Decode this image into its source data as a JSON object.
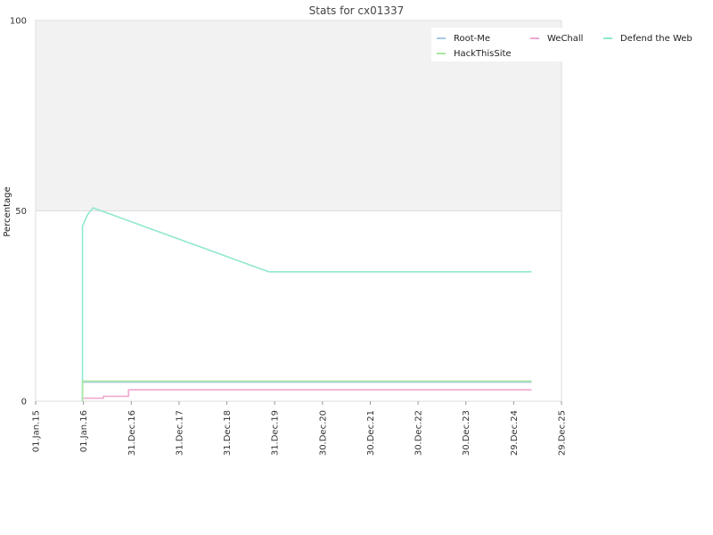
{
  "chart_data": {
    "type": "line",
    "title": "Stats for cx01337",
    "ylabel": "Percentage",
    "xlabel": "",
    "ylim": [
      0,
      100
    ],
    "yticks": [
      "0",
      "50",
      "100"
    ],
    "xlim": [
      "2015-01-01",
      "2025-12-29"
    ],
    "xticks": [
      {
        "date": "2015-01-01",
        "label": "01.Jan.15"
      },
      {
        "date": "2016-01-01",
        "label": "01.Jan.16"
      },
      {
        "date": "2016-12-31",
        "label": "31.Dec.16"
      },
      {
        "date": "2017-12-31",
        "label": "31.Dec.17"
      },
      {
        "date": "2018-12-31",
        "label": "31.Dec.18"
      },
      {
        "date": "2019-12-31",
        "label": "31.Dec.19"
      },
      {
        "date": "2020-12-30",
        "label": "30.Dec.20"
      },
      {
        "date": "2021-12-30",
        "label": "30.Dec.21"
      },
      {
        "date": "2022-12-30",
        "label": "30.Dec.22"
      },
      {
        "date": "2023-12-30",
        "label": "30.Dec.23"
      },
      {
        "date": "2024-12-29",
        "label": "29.Dec.24"
      },
      {
        "date": "2025-12-29",
        "label": "29.Dec.25"
      }
    ],
    "legend_position": "top-right",
    "band": {
      "from": 50,
      "to": 100,
      "color": "#f2f2f2"
    },
    "series": [
      {
        "name": "Root-Me",
        "color": "#a6c8e8",
        "x": [
          "2015-12-25",
          "2015-12-25",
          "2025-05-15"
        ],
        "y": [
          0,
          5.0,
          5.0
        ]
      },
      {
        "name": "WeChall",
        "color": "#f0a8d0",
        "x": [
          "2015-12-25",
          "2015-12-25",
          "2016-06-01",
          "2016-06-01",
          "2016-12-10",
          "2016-12-10",
          "2025-05-15"
        ],
        "y": [
          0,
          0.8,
          0.8,
          1.3,
          1.3,
          3.0,
          3.0
        ]
      },
      {
        "name": "Defend the Web",
        "color": "#90e8d0",
        "x": [
          "2015-12-25",
          "2015-12-25",
          "2016-02-01",
          "2016-03-15",
          "2019-11-15",
          "2025-05-15"
        ],
        "y": [
          0,
          46.0,
          49.0,
          50.8,
          34.0,
          34.0
        ]
      },
      {
        "name": "HackThisSite",
        "color": "#a8e8a0",
        "x": [
          "2015-12-25",
          "2015-12-25",
          "2025-05-15"
        ],
        "y": [
          0,
          5.3,
          5.3
        ]
      }
    ]
  }
}
